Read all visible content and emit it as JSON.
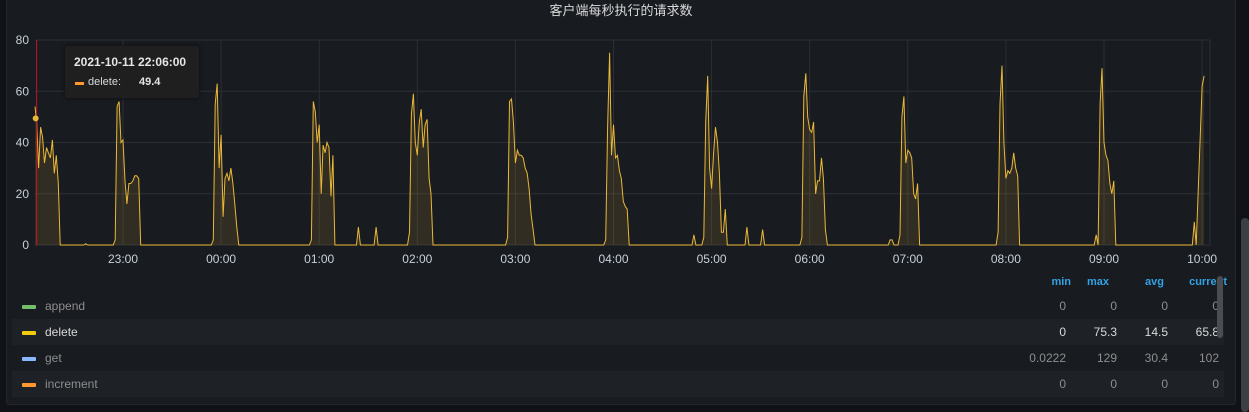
{
  "panel": {
    "title": "客户端每秒执行的请求数"
  },
  "chart_data": {
    "type": "area",
    "title": "客户端每秒执行的请求数",
    "ylim": [
      0,
      80
    ],
    "y_ticks": [
      "0",
      "20",
      "40",
      "60",
      "80"
    ],
    "x_ticks": [
      "23:00",
      "00:00",
      "01:00",
      "02:00",
      "03:00",
      "04:00",
      "05:00",
      "06:00",
      "07:00",
      "08:00",
      "09:00",
      "10:00"
    ],
    "x_range_hours": [
      -0.9,
      10.0
    ],
    "series": [
      {
        "name": "delete",
        "color": "#eab839",
        "points": [
          [
            -0.9,
            54
          ],
          [
            -0.88,
            48
          ],
          [
            -0.86,
            30
          ],
          [
            -0.84,
            46
          ],
          [
            -0.82,
            42
          ],
          [
            -0.8,
            32
          ],
          [
            -0.78,
            38
          ],
          [
            -0.76,
            36
          ],
          [
            -0.74,
            34
          ],
          [
            -0.72,
            41
          ],
          [
            -0.7,
            28
          ],
          [
            -0.68,
            35
          ],
          [
            -0.66,
            24
          ],
          [
            -0.64,
            0
          ],
          [
            -0.4,
            0
          ],
          [
            -0.38,
            0.5
          ],
          [
            -0.36,
            0
          ],
          [
            -0.1,
            0
          ],
          [
            -0.08,
            2
          ],
          [
            -0.06,
            54
          ],
          [
            -0.04,
            56
          ],
          [
            -0.02,
            40
          ],
          [
            0.0,
            41
          ],
          [
            0.02,
            25
          ],
          [
            0.04,
            16
          ],
          [
            0.06,
            24
          ],
          [
            0.08,
            24
          ],
          [
            0.1,
            25
          ],
          [
            0.12,
            27
          ],
          [
            0.14,
            27
          ],
          [
            0.16,
            26
          ],
          [
            0.18,
            0
          ],
          [
            0.9,
            0
          ],
          [
            0.92,
            2
          ],
          [
            0.94,
            55
          ],
          [
            0.96,
            63
          ],
          [
            0.98,
            30
          ],
          [
            1.0,
            43
          ],
          [
            1.02,
            11
          ],
          [
            1.04,
            26
          ],
          [
            1.06,
            28
          ],
          [
            1.08,
            25
          ],
          [
            1.1,
            30
          ],
          [
            1.12,
            24
          ],
          [
            1.14,
            16
          ],
          [
            1.16,
            7
          ],
          [
            1.18,
            0
          ],
          [
            1.9,
            0
          ],
          [
            1.92,
            2
          ],
          [
            1.94,
            56
          ],
          [
            1.96,
            52
          ],
          [
            1.98,
            40
          ],
          [
            2.0,
            47
          ],
          [
            2.02,
            20
          ],
          [
            2.04,
            39
          ],
          [
            2.06,
            36
          ],
          [
            2.08,
            40
          ],
          [
            2.1,
            38
          ],
          [
            2.12,
            19
          ],
          [
            2.14,
            35
          ],
          [
            2.16,
            0
          ],
          [
            2.38,
            0
          ],
          [
            2.4,
            7
          ],
          [
            2.42,
            0
          ],
          [
            2.56,
            0
          ],
          [
            2.58,
            7
          ],
          [
            2.6,
            0
          ],
          [
            2.9,
            0
          ],
          [
            2.92,
            5
          ],
          [
            2.94,
            51
          ],
          [
            2.96,
            59
          ],
          [
            2.98,
            40
          ],
          [
            3.0,
            35
          ],
          [
            3.02,
            48
          ],
          [
            3.04,
            53
          ],
          [
            3.06,
            38
          ],
          [
            3.08,
            47
          ],
          [
            3.1,
            49
          ],
          [
            3.12,
            26
          ],
          [
            3.14,
            20
          ],
          [
            3.16,
            0
          ],
          [
            3.9,
            0
          ],
          [
            3.92,
            3
          ],
          [
            3.94,
            56
          ],
          [
            3.96,
            57
          ],
          [
            3.98,
            48
          ],
          [
            4.0,
            32
          ],
          [
            4.02,
            37
          ],
          [
            4.04,
            35
          ],
          [
            4.06,
            35
          ],
          [
            4.08,
            34
          ],
          [
            4.1,
            30
          ],
          [
            4.12,
            28
          ],
          [
            4.14,
            22
          ],
          [
            4.16,
            12
          ],
          [
            4.18,
            6
          ],
          [
            4.2,
            0
          ],
          [
            4.9,
            0
          ],
          [
            4.92,
            2
          ],
          [
            4.94,
            46
          ],
          [
            4.96,
            75
          ],
          [
            4.98,
            35
          ],
          [
            5.0,
            47
          ],
          [
            5.02,
            34
          ],
          [
            5.04,
            35
          ],
          [
            5.06,
            29
          ],
          [
            5.08,
            26
          ],
          [
            5.1,
            17
          ],
          [
            5.12,
            15
          ],
          [
            5.14,
            14
          ],
          [
            5.16,
            0
          ],
          [
            5.8,
            0
          ],
          [
            5.82,
            4
          ],
          [
            5.84,
            0
          ],
          [
            5.9,
            0
          ],
          [
            5.92,
            3
          ],
          [
            5.94,
            48
          ],
          [
            5.96,
            66
          ],
          [
            5.98,
            30
          ],
          [
            6.0,
            22
          ],
          [
            6.02,
            36
          ],
          [
            6.04,
            46
          ],
          [
            6.06,
            40
          ],
          [
            6.08,
            28
          ],
          [
            6.1,
            5
          ],
          [
            6.12,
            5
          ],
          [
            6.14,
            14
          ],
          [
            6.16,
            0
          ],
          [
            6.34,
            0
          ],
          [
            6.36,
            7
          ],
          [
            6.38,
            0
          ],
          [
            6.5,
            0
          ],
          [
            6.52,
            6
          ],
          [
            6.54,
            0
          ],
          [
            6.9,
            0
          ],
          [
            6.92,
            3
          ],
          [
            6.94,
            58
          ],
          [
            6.96,
            67
          ],
          [
            6.98,
            50
          ],
          [
            7.0,
            45
          ],
          [
            7.02,
            44
          ],
          [
            7.04,
            48
          ],
          [
            7.06,
            20
          ],
          [
            7.08,
            25
          ],
          [
            7.1,
            25
          ],
          [
            7.12,
            34
          ],
          [
            7.14,
            26
          ],
          [
            7.16,
            6
          ],
          [
            7.18,
            0
          ],
          [
            7.8,
            0
          ],
          [
            7.82,
            2
          ],
          [
            7.84,
            2
          ],
          [
            7.86,
            0
          ],
          [
            7.9,
            0
          ],
          [
            7.92,
            4
          ],
          [
            7.94,
            50
          ],
          [
            7.96,
            58
          ],
          [
            7.98,
            32
          ],
          [
            8.0,
            37
          ],
          [
            8.02,
            36
          ],
          [
            8.04,
            34
          ],
          [
            8.06,
            20
          ],
          [
            8.08,
            18
          ],
          [
            8.1,
            24
          ],
          [
            8.12,
            0
          ],
          [
            8.9,
            0
          ],
          [
            8.92,
            5
          ],
          [
            8.94,
            55
          ],
          [
            8.96,
            70
          ],
          [
            8.98,
            40
          ],
          [
            9.0,
            26
          ],
          [
            9.02,
            29
          ],
          [
            9.04,
            28
          ],
          [
            9.06,
            30
          ],
          [
            9.08,
            36
          ],
          [
            9.1,
            30
          ],
          [
            9.12,
            27
          ],
          [
            9.14,
            0
          ],
          [
            9.9,
            0
          ],
          [
            9.92,
            4
          ],
          [
            9.94,
            0
          ],
          [
            9.96,
            55
          ],
          [
            9.98,
            69
          ],
          [
            10.0,
            40
          ],
          [
            10.02,
            35
          ],
          [
            10.04,
            33
          ],
          [
            10.06,
            24
          ],
          [
            10.08,
            20
          ],
          [
            10.1,
            25
          ],
          [
            10.12,
            0
          ],
          [
            10.9,
            0
          ],
          [
            10.92,
            9
          ],
          [
            10.94,
            0
          ],
          [
            11.0,
            62
          ],
          [
            11.02,
            66
          ]
        ]
      }
    ],
    "cursor_hours": -0.88
  },
  "tooltip": {
    "time": "2021-10-11 22:06:00",
    "series": "delete:",
    "value": "49.4",
    "color": "#ff9830"
  },
  "legend": {
    "headers": {
      "min": "min",
      "max": "max",
      "avg": "avg",
      "current": "current"
    },
    "rows": [
      {
        "name": "append",
        "color": "#73bf69",
        "min": "0",
        "max": "0",
        "avg": "0",
        "current": "0",
        "active": false
      },
      {
        "name": "delete",
        "color": "#f2cc0c",
        "min": "0",
        "max": "75.3",
        "avg": "14.5",
        "current": "65.8",
        "active": true
      },
      {
        "name": "get",
        "color": "#8ab8ff",
        "min": "0.0222",
        "max": "129",
        "avg": "30.4",
        "current": "102",
        "active": false
      },
      {
        "name": "increment",
        "color": "#ff9830",
        "min": "0",
        "max": "0",
        "avg": "0",
        "current": "0",
        "active": false
      }
    ]
  }
}
